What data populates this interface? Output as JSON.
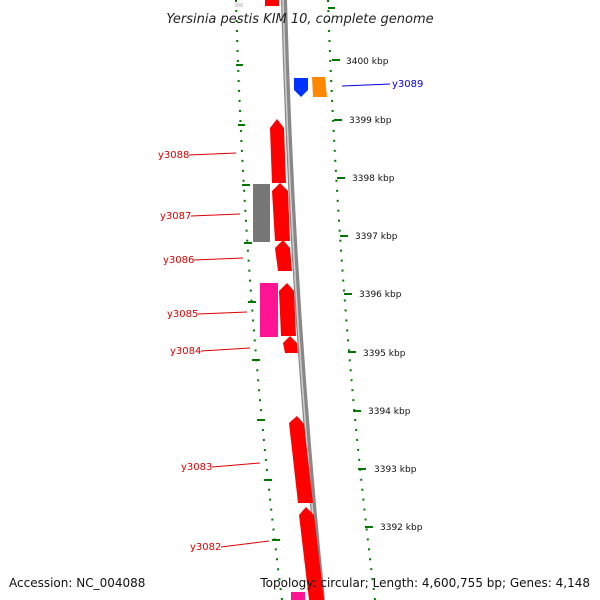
{
  "title": "Yersinia pestis KIM 10, complete genome",
  "footer": {
    "accession": "Accession: NC_004088",
    "summary": "Topology: circular; Length: 4,600,755 bp; Genes: 4,148"
  },
  "ticks": [
    "3400 kbp",
    "3399 kbp",
    "3398 kbp",
    "3397 kbp",
    "3396 kbp",
    "3395 kbp",
    "3394 kbp",
    "3393 kbp",
    "3392 kbp"
  ],
  "genes": [
    {
      "label": "y3089",
      "color": "#0000dd"
    },
    {
      "label": "y3088",
      "color": "#dd0000"
    },
    {
      "label": "y3087",
      "color": "#dd0000"
    },
    {
      "label": "y3086",
      "color": "#dd0000"
    },
    {
      "label": "y3085",
      "color": "#dd0000"
    },
    {
      "label": "y3084",
      "color": "#dd0000"
    },
    {
      "label": "y3083",
      "color": "#dd0000"
    },
    {
      "label": "y3082",
      "color": "#dd0000"
    }
  ],
  "colors": {
    "cds": "#ff0000",
    "forward_blue": "#0033ff",
    "orange": "#ff8800",
    "gray": "#777777",
    "pink": "#ff1493",
    "tick_green": "#008800",
    "backbone": "#999999"
  }
}
